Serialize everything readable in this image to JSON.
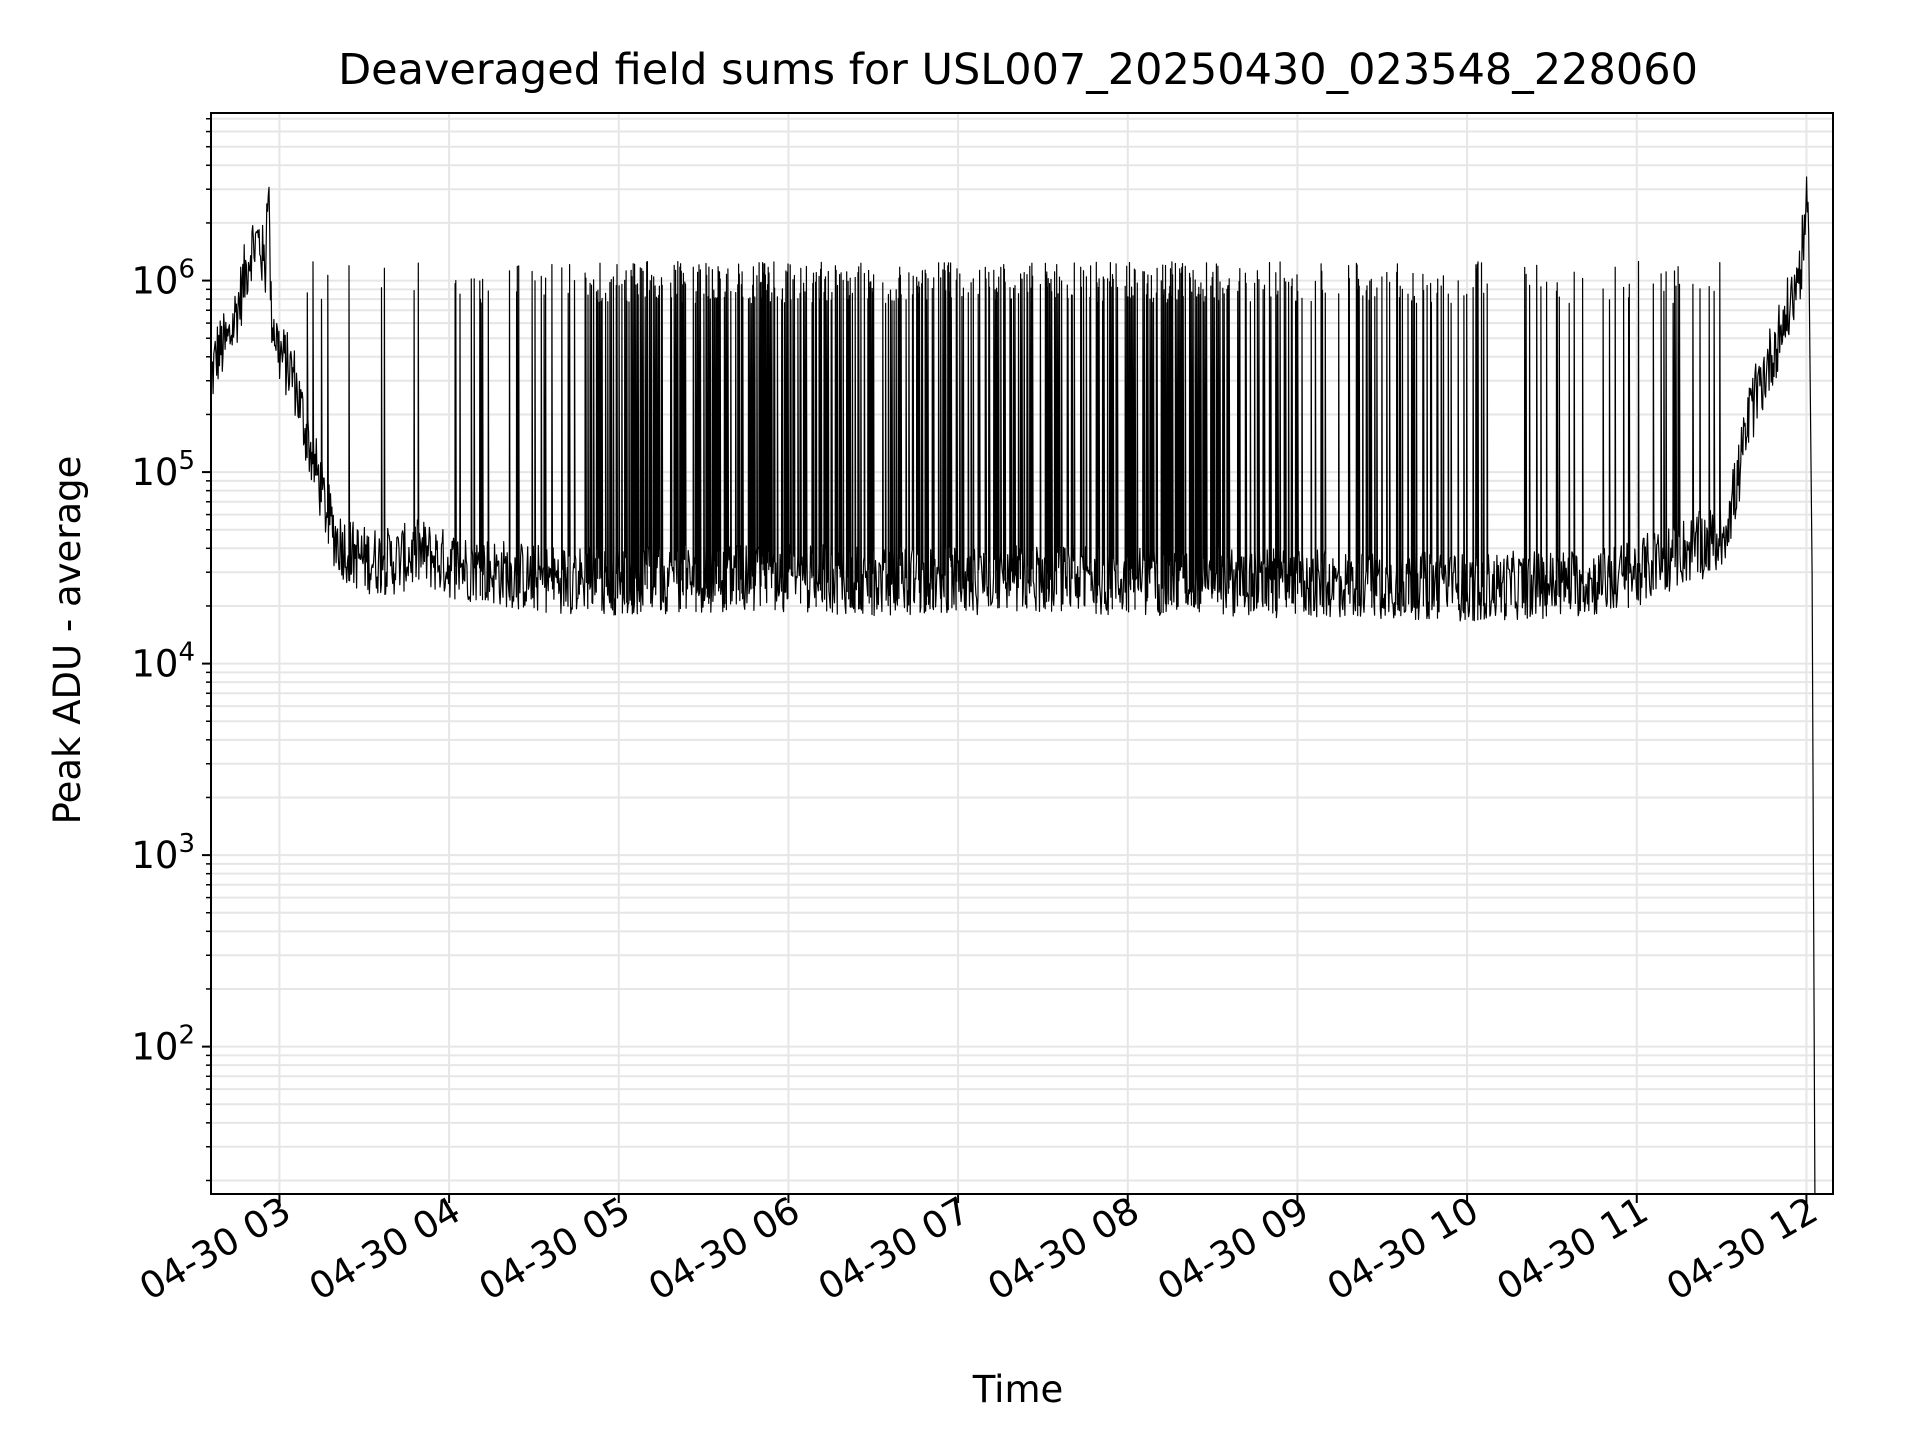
{
  "chart_data": {
    "type": "line",
    "title": "Deaveraged field sums for USL007_20250430_023548_228060",
    "xlabel": "Time",
    "ylabel": "Peak ADU - average",
    "yscale": "log",
    "ylim": [
      17,
      7500000
    ],
    "xlim": [
      "2025-04-30 02:35:48",
      "2025-04-30 12:09:24"
    ],
    "grid": true,
    "grid_which": "both",
    "line_color": "#000000",
    "grid_color": "#e6e6e6",
    "x_ticks": [
      {
        "t": "2025-04-30 03:00",
        "label": "04-30 03"
      },
      {
        "t": "2025-04-30 04:00",
        "label": "04-30 04"
      },
      {
        "t": "2025-04-30 05:00",
        "label": "04-30 05"
      },
      {
        "t": "2025-04-30 06:00",
        "label": "04-30 06"
      },
      {
        "t": "2025-04-30 07:00",
        "label": "04-30 07"
      },
      {
        "t": "2025-04-30 08:00",
        "label": "04-30 08"
      },
      {
        "t": "2025-04-30 09:00",
        "label": "04-30 09"
      },
      {
        "t": "2025-04-30 10:00",
        "label": "04-30 10"
      },
      {
        "t": "2025-04-30 11:00",
        "label": "04-30 11"
      },
      {
        "t": "2025-04-30 12:00",
        "label": "04-30 12"
      }
    ],
    "y_ticks": [
      {
        "value": 100,
        "base": "10",
        "exp": "2"
      },
      {
        "value": 1000,
        "base": "10",
        "exp": "3"
      },
      {
        "value": 10000,
        "base": "10",
        "exp": "4"
      },
      {
        "value": 100000,
        "base": "10",
        "exp": "5"
      },
      {
        "value": 1000000,
        "base": "10",
        "exp": "6"
      }
    ],
    "series": [
      {
        "x": [
          "2025-04-30 02:35:48",
          "2025-04-30 02:38",
          "2025-04-30 02:42",
          "2025-04-30 02:46",
          "2025-04-30 02:50",
          "2025-04-30 02:53",
          "2025-04-30 02:55",
          "2025-04-30 02:56",
          "2025-04-30 02:57",
          "2025-04-30 03:00",
          "2025-04-30 03:05",
          "2025-04-30 03:08",
          "2025-04-30 03:11",
          "2025-04-30 03:14",
          "2025-04-30 03:17",
          "2025-04-30 03:20",
          "2025-04-30 03:25",
          "2025-04-30 03:30",
          "2025-04-30 03:40",
          "2025-04-30 03:50",
          "2025-04-30 04:00",
          "2025-04-30 04:30",
          "2025-04-30 05:00",
          "2025-04-30 05:30",
          "2025-04-30 06:00",
          "2025-04-30 06:30",
          "2025-04-30 07:00",
          "2025-04-30 07:30",
          "2025-04-30 08:00",
          "2025-04-30 08:30",
          "2025-04-30 09:00",
          "2025-04-30 09:30",
          "2025-04-30 10:00",
          "2025-04-30 10:30",
          "2025-04-30 10:50",
          "2025-04-30 11:00",
          "2025-04-30 11:15",
          "2025-04-30 11:30",
          "2025-04-30 11:35",
          "2025-04-30 11:40",
          "2025-04-30 11:45",
          "2025-04-30 11:50",
          "2025-04-30 11:55",
          "2025-04-30 11:58",
          "2025-04-30 12:00",
          "2025-04-30 12:01",
          "2025-04-30 12:02",
          "2025-04-30 12:03"
        ],
        "y": [
          300000,
          420000,
          480000,
          800000,
          1500000,
          1600000,
          1100000,
          4200000,
          700000,
          420000,
          320000,
          200000,
          130000,
          90000,
          60000,
          45000,
          38000,
          35000,
          34000,
          38000,
          33000,
          28000,
          27000,
          28000,
          28000,
          27000,
          27000,
          28000,
          27000,
          27000,
          26000,
          26000,
          25000,
          26000,
          27000,
          30000,
          38000,
          45000,
          80000,
          200000,
          320000,
          500000,
          800000,
          1200000,
          2400000,
          1300000,
          30000,
          17
        ]
      }
    ]
  }
}
